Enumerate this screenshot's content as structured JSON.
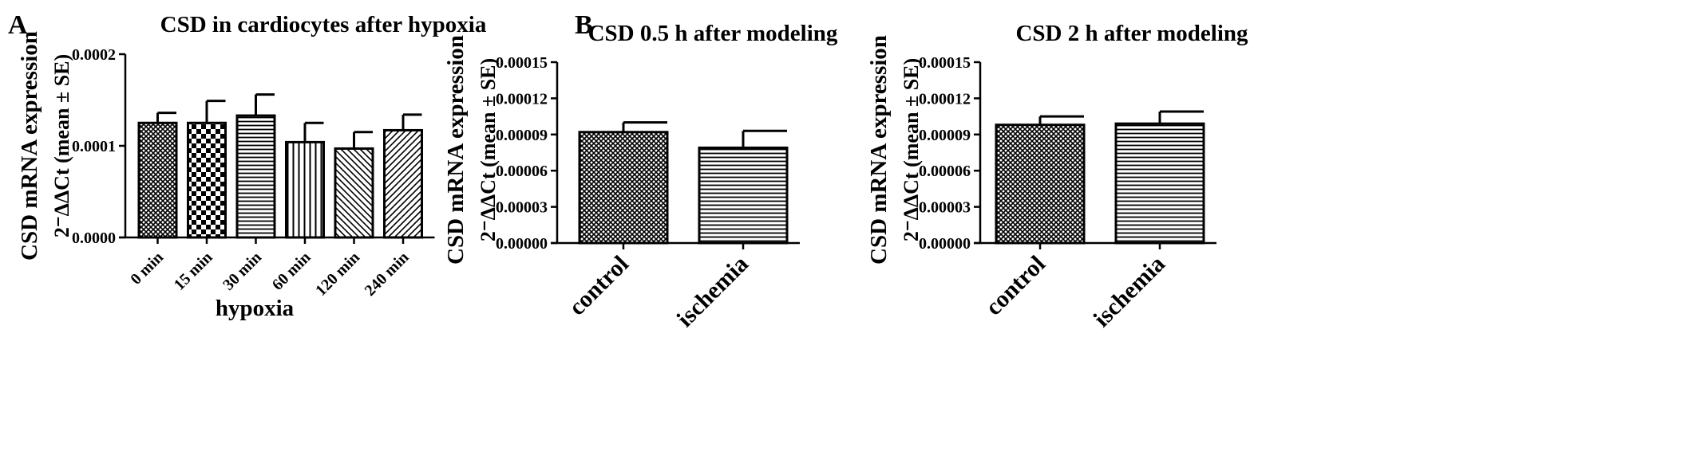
{
  "panel_labels": [
    "A",
    "B"
  ],
  "chart_data": [
    {
      "type": "bar",
      "panel": "A",
      "title": "CSD in cardiocytes after hypoxia",
      "ylabel": "CSD mRNA expression",
      "ylabel_sub": "2⁻ΔΔCt (mean ± SE)",
      "xlabel": "hypoxia",
      "categories": [
        "0 min",
        "15 min",
        "30 min",
        "60 min",
        "120 min",
        "240 min"
      ],
      "values": [
        0.000125,
        0.000125,
        0.000133,
        0.000104,
        9.7e-05,
        0.000117
      ],
      "errors": [
        1.1e-05,
        2.4e-05,
        2.3e-05,
        2.1e-05,
        1.8e-05,
        1.7e-05
      ],
      "patterns": [
        "crosshatch-fine",
        "checker",
        "horizontal",
        "vertical",
        "diag-back",
        "diag-fwd"
      ],
      "ylim": [
        0,
        0.0002
      ],
      "yticks": [
        "0.0000",
        "0.0001",
        "0.0002"
      ],
      "ytick_values": [
        0,
        0.0001,
        0.0002
      ]
    },
    {
      "type": "bar",
      "panel": "B",
      "title": "CSD 0.5 h after modeling",
      "ylabel": "CSD mRNA expression",
      "ylabel_sub": "2⁻ΔΔCt (mean ± SE)",
      "xlabel": "",
      "categories": [
        "control",
        "ischemia"
      ],
      "values": [
        9.2e-05,
        7.9e-05
      ],
      "errors": [
        8e-06,
        1.4e-05
      ],
      "patterns": [
        "crosshatch-fine",
        "horizontal"
      ],
      "ylim": [
        0,
        0.00015
      ],
      "yticks": [
        "0.00000",
        "0.00003",
        "0.00006",
        "0.00009",
        "0.00012",
        "0.00015"
      ],
      "ytick_values": [
        0,
        3e-05,
        6e-05,
        9e-05,
        0.00012,
        0.00015
      ]
    },
    {
      "type": "bar",
      "panel": "",
      "title": "CSD 2 h after modeling",
      "ylabel": "CSD mRNA expression",
      "ylabel_sub": "2⁻ΔΔCt (mean ± SE)",
      "xlabel": "",
      "categories": [
        "control",
        "ischemia"
      ],
      "values": [
        9.8e-05,
        9.9e-05
      ],
      "errors": [
        7e-06,
        1e-05
      ],
      "patterns": [
        "crosshatch-fine",
        "horizontal"
      ],
      "ylim": [
        0,
        0.00015
      ],
      "yticks": [
        "0.00000",
        "0.00003",
        "0.00006",
        "0.00009",
        "0.00012",
        "0.00015"
      ],
      "ytick_values": [
        0,
        3e-05,
        6e-05,
        9e-05,
        0.00012,
        0.00015
      ]
    }
  ]
}
